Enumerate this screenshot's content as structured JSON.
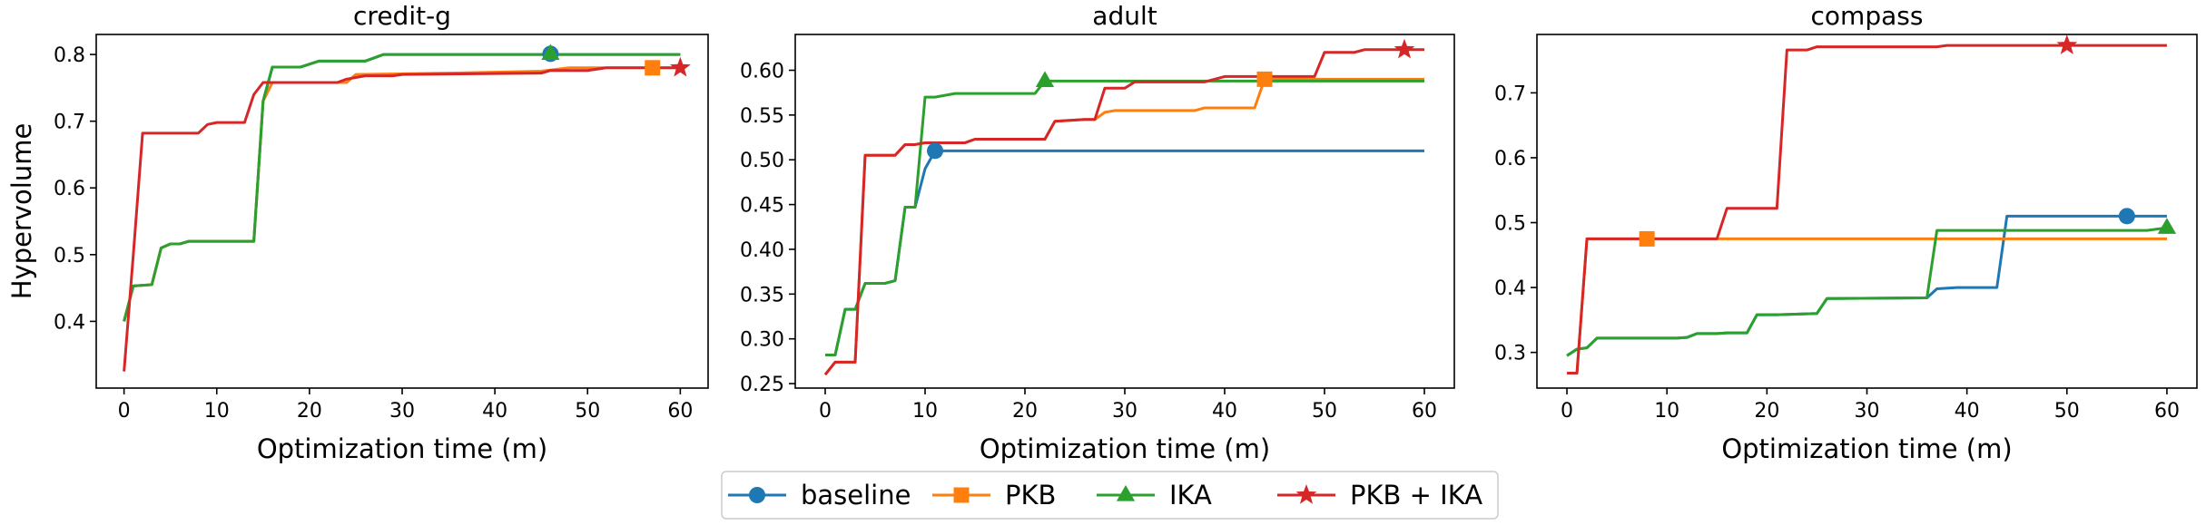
{
  "chart_data": {
    "type": "line",
    "ylabel": "Hypervolume",
    "xlabel": "Optimization time (m)",
    "legend_position": "bottom-center",
    "legend": [
      {
        "name": "baseline",
        "color": "#1f77b4",
        "marker": "circle"
      },
      {
        "name": "PKB",
        "color": "#ff7f0e",
        "marker": "square"
      },
      {
        "name": "IKA",
        "color": "#2ca02c",
        "marker": "triangle"
      },
      {
        "name": "PKB + IKA",
        "color": "#d62728",
        "marker": "star"
      }
    ],
    "panels": [
      {
        "title": "credit-g",
        "xlim": [
          -3,
          63
        ],
        "ylim": [
          0.3,
          0.83
        ],
        "xticks": [
          0,
          10,
          20,
          30,
          40,
          50,
          60
        ],
        "yticks": [
          0.4,
          0.5,
          0.6,
          0.7,
          0.8
        ],
        "ytick_labels": [
          "0.4",
          "0.5",
          "0.6",
          "0.7",
          "0.8"
        ],
        "series": [
          {
            "name": "baseline",
            "marker_at": [
              46,
              0.801
            ],
            "points": [
              [
                0,
                0.4
              ],
              [
                1,
                0.453
              ],
              [
                3,
                0.455
              ],
              [
                4,
                0.51
              ],
              [
                5,
                0.516
              ],
              [
                6,
                0.516
              ],
              [
                7,
                0.52
              ],
              [
                14,
                0.52
              ],
              [
                15,
                0.73
              ],
              [
                16,
                0.781
              ],
              [
                19,
                0.781
              ],
              [
                21,
                0.79
              ],
              [
                26,
                0.79
              ],
              [
                28,
                0.8
              ],
              [
                60,
                0.8
              ]
            ]
          },
          {
            "name": "PKB",
            "marker_at": [
              57,
              0.78
            ],
            "points": [
              [
                0,
                0.4
              ],
              [
                1,
                0.453
              ],
              [
                3,
                0.455
              ],
              [
                4,
                0.51
              ],
              [
                5,
                0.516
              ],
              [
                6,
                0.516
              ],
              [
                7,
                0.52
              ],
              [
                14,
                0.52
              ],
              [
                15,
                0.73
              ],
              [
                16,
                0.758
              ],
              [
                24,
                0.758
              ],
              [
                25,
                0.77
              ],
              [
                35,
                0.772
              ],
              [
                45,
                0.775
              ],
              [
                48,
                0.78
              ],
              [
                60,
                0.78
              ]
            ]
          },
          {
            "name": "IKA",
            "marker_at": [
              46,
              0.801
            ],
            "points": [
              [
                0,
                0.4
              ],
              [
                1,
                0.453
              ],
              [
                3,
                0.455
              ],
              [
                4,
                0.51
              ],
              [
                5,
                0.516
              ],
              [
                6,
                0.516
              ],
              [
                7,
                0.52
              ],
              [
                14,
                0.52
              ],
              [
                15,
                0.73
              ],
              [
                16,
                0.781
              ],
              [
                19,
                0.781
              ],
              [
                21,
                0.79
              ],
              [
                26,
                0.79
              ],
              [
                28,
                0.8
              ],
              [
                60,
                0.8
              ]
            ]
          },
          {
            "name": "PKB + IKA",
            "marker_at": [
              60,
              0.78
            ],
            "points": [
              [
                0,
                0.325
              ],
              [
                1,
                0.5
              ],
              [
                2,
                0.682
              ],
              [
                8,
                0.682
              ],
              [
                9,
                0.695
              ],
              [
                10,
                0.698
              ],
              [
                13,
                0.698
              ],
              [
                14,
                0.74
              ],
              [
                15,
                0.758
              ],
              [
                23,
                0.758
              ],
              [
                24,
                0.763
              ],
              [
                26,
                0.768
              ],
              [
                29,
                0.768
              ],
              [
                30,
                0.77
              ],
              [
                45,
                0.772
              ],
              [
                46,
                0.776
              ],
              [
                50,
                0.776
              ],
              [
                52,
                0.78
              ],
              [
                60,
                0.78
              ]
            ]
          }
        ]
      },
      {
        "title": "adult",
        "xlim": [
          -3,
          63
        ],
        "ylim": [
          0.245,
          0.64
        ],
        "xticks": [
          0,
          10,
          20,
          30,
          40,
          50,
          60
        ],
        "yticks": [
          0.25,
          0.3,
          0.35,
          0.4,
          0.45,
          0.5,
          0.55,
          0.6
        ],
        "ytick_labels": [
          "0.25",
          "0.30",
          "0.35",
          "0.40",
          "0.45",
          "0.50",
          "0.55",
          "0.60"
        ],
        "series": [
          {
            "name": "baseline",
            "marker_at": [
              11,
              0.51
            ],
            "points": [
              [
                0,
                0.282
              ],
              [
                1,
                0.282
              ],
              [
                2,
                0.333
              ],
              [
                3,
                0.333
              ],
              [
                4,
                0.362
              ],
              [
                6,
                0.362
              ],
              [
                7,
                0.365
              ],
              [
                8,
                0.447
              ],
              [
                9,
                0.447
              ],
              [
                10,
                0.49
              ],
              [
                11,
                0.51
              ],
              [
                60,
                0.51
              ]
            ]
          },
          {
            "name": "PKB",
            "marker_at": [
              44,
              0.59
            ],
            "points": [
              [
                0,
                0.26
              ],
              [
                1,
                0.274
              ],
              [
                3,
                0.274
              ],
              [
                4,
                0.505
              ],
              [
                7,
                0.505
              ],
              [
                8,
                0.517
              ],
              [
                9,
                0.517
              ],
              [
                10,
                0.519
              ],
              [
                14,
                0.519
              ],
              [
                15,
                0.523
              ],
              [
                22,
                0.523
              ],
              [
                23,
                0.543
              ],
              [
                26,
                0.545
              ],
              [
                27,
                0.545
              ],
              [
                28,
                0.553
              ],
              [
                29,
                0.555
              ],
              [
                37,
                0.555
              ],
              [
                38,
                0.558
              ],
              [
                43,
                0.558
              ],
              [
                44,
                0.59
              ],
              [
                60,
                0.59
              ]
            ]
          },
          {
            "name": "IKA",
            "marker_at": [
              22,
              0.588
            ],
            "points": [
              [
                0,
                0.282
              ],
              [
                1,
                0.282
              ],
              [
                2,
                0.333
              ],
              [
                3,
                0.333
              ],
              [
                4,
                0.362
              ],
              [
                6,
                0.362
              ],
              [
                7,
                0.365
              ],
              [
                8,
                0.447
              ],
              [
                9,
                0.447
              ],
              [
                10,
                0.57
              ],
              [
                11,
                0.57
              ],
              [
                13,
                0.574
              ],
              [
                21,
                0.574
              ],
              [
                22,
                0.588
              ],
              [
                60,
                0.588
              ]
            ]
          },
          {
            "name": "PKB + IKA",
            "marker_at": [
              58,
              0.623
            ],
            "points": [
              [
                0,
                0.26
              ],
              [
                1,
                0.274
              ],
              [
                3,
                0.274
              ],
              [
                4,
                0.505
              ],
              [
                7,
                0.505
              ],
              [
                8,
                0.517
              ],
              [
                9,
                0.517
              ],
              [
                10,
                0.519
              ],
              [
                14,
                0.519
              ],
              [
                15,
                0.523
              ],
              [
                22,
                0.523
              ],
              [
                23,
                0.543
              ],
              [
                26,
                0.545
              ],
              [
                27,
                0.545
              ],
              [
                28,
                0.58
              ],
              [
                30,
                0.58
              ],
              [
                31,
                0.587
              ],
              [
                38,
                0.587
              ],
              [
                40,
                0.593
              ],
              [
                49,
                0.593
              ],
              [
                50,
                0.62
              ],
              [
                53,
                0.62
              ],
              [
                54,
                0.623
              ],
              [
                60,
                0.623
              ]
            ]
          }
        ]
      },
      {
        "title": "compass",
        "xlim": [
          -3,
          63
        ],
        "ylim": [
          0.245,
          0.79
        ],
        "xticks": [
          0,
          10,
          20,
          30,
          40,
          50,
          60
        ],
        "yticks": [
          0.3,
          0.4,
          0.5,
          0.6,
          0.7
        ],
        "ytick_labels": [
          "0.3",
          "0.4",
          "0.5",
          "0.6",
          "0.7"
        ],
        "series": [
          {
            "name": "baseline",
            "marker_at": [
              56,
              0.51
            ],
            "points": [
              [
                0,
                0.295
              ],
              [
                1,
                0.305
              ],
              [
                2,
                0.307
              ],
              [
                3,
                0.322
              ],
              [
                11,
                0.322
              ],
              [
                12,
                0.323
              ],
              [
                13,
                0.329
              ],
              [
                15,
                0.329
              ],
              [
                16,
                0.33
              ],
              [
                18,
                0.33
              ],
              [
                19,
                0.358
              ],
              [
                21,
                0.358
              ],
              [
                25,
                0.36
              ],
              [
                26,
                0.383
              ],
              [
                36,
                0.384
              ],
              [
                37,
                0.398
              ],
              [
                39,
                0.4
              ],
              [
                43,
                0.4
              ],
              [
                44,
                0.51
              ],
              [
                60,
                0.51
              ]
            ]
          },
          {
            "name": "PKB",
            "marker_at": [
              8,
              0.475
            ],
            "points": [
              [
                0,
                0.268
              ],
              [
                1,
                0.268
              ],
              [
                2,
                0.475
              ],
              [
                60,
                0.475
              ]
            ]
          },
          {
            "name": "IKA",
            "marker_at": [
              60,
              0.492
            ],
            "points": [
              [
                0,
                0.295
              ],
              [
                1,
                0.305
              ],
              [
                2,
                0.307
              ],
              [
                3,
                0.322
              ],
              [
                11,
                0.322
              ],
              [
                12,
                0.323
              ],
              [
                13,
                0.329
              ],
              [
                15,
                0.329
              ],
              [
                16,
                0.33
              ],
              [
                18,
                0.33
              ],
              [
                19,
                0.358
              ],
              [
                21,
                0.358
              ],
              [
                25,
                0.36
              ],
              [
                26,
                0.383
              ],
              [
                36,
                0.384
              ],
              [
                37,
                0.488
              ],
              [
                58,
                0.488
              ],
              [
                60,
                0.492
              ]
            ]
          },
          {
            "name": "PKB + IKA",
            "marker_at": [
              50,
              0.773
            ],
            "points": [
              [
                0,
                0.268
              ],
              [
                1,
                0.268
              ],
              [
                2,
                0.475
              ],
              [
                15,
                0.475
              ],
              [
                16,
                0.522
              ],
              [
                21,
                0.522
              ],
              [
                22,
                0.766
              ],
              [
                24,
                0.766
              ],
              [
                25,
                0.771
              ],
              [
                37,
                0.771
              ],
              [
                38,
                0.773
              ],
              [
                60,
                0.773
              ]
            ]
          }
        ]
      }
    ]
  }
}
